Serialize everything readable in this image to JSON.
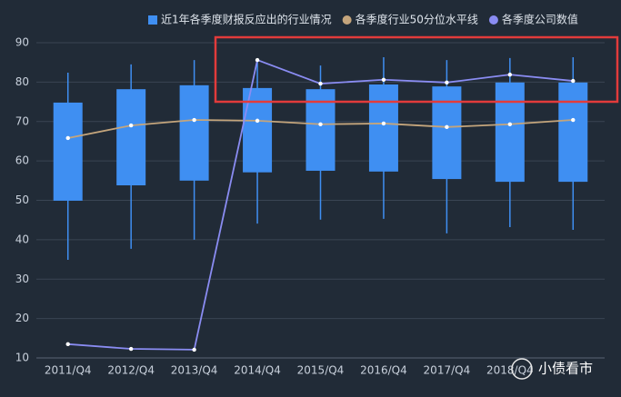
{
  "chart_data": {
    "type": "box",
    "categories": [
      "2011/Q4",
      "2012/Q4",
      "2013/Q4",
      "2014/Q4",
      "2015/Q4",
      "2016/Q4",
      "2017/Q4",
      "2018/Q4",
      null
    ],
    "ylim": [
      10,
      90
    ],
    "yticks": [
      10,
      20,
      30,
      40,
      50,
      60,
      70,
      80,
      90
    ],
    "grid": true,
    "legend": "top",
    "series": [
      {
        "name": "近1年各季度财报反应出的行业情况",
        "color": "#3f8ff2",
        "type": "box",
        "low": [
          34.9,
          37.7,
          40.0,
          44.1,
          45.1,
          45.3,
          41.6,
          43.2,
          42.5
        ],
        "q1": [
          49.9,
          53.8,
          55.0,
          57.1,
          57.5,
          57.3,
          55.4,
          54.7,
          54.7
        ],
        "q3": [
          74.8,
          78.2,
          79.2,
          78.5,
          78.2,
          79.4,
          78.9,
          79.9,
          79.9
        ],
        "high": [
          82.4,
          84.5,
          85.6,
          86.0,
          84.2,
          86.3,
          85.6,
          86.1,
          86.3
        ]
      },
      {
        "name": "各季度行业50分位水平线",
        "color": "#c4a57c",
        "type": "line",
        "values": [
          65.8,
          69.0,
          70.4,
          70.2,
          69.3,
          69.5,
          68.6,
          69.3,
          70.4
        ]
      },
      {
        "name": "各季度公司数值",
        "color": "#8a8cf2",
        "type": "line",
        "values": [
          13.5,
          12.3,
          12.1,
          85.6,
          79.6,
          80.6,
          79.9,
          81.9,
          80.3
        ]
      }
    ],
    "watermark": "小债看市"
  }
}
